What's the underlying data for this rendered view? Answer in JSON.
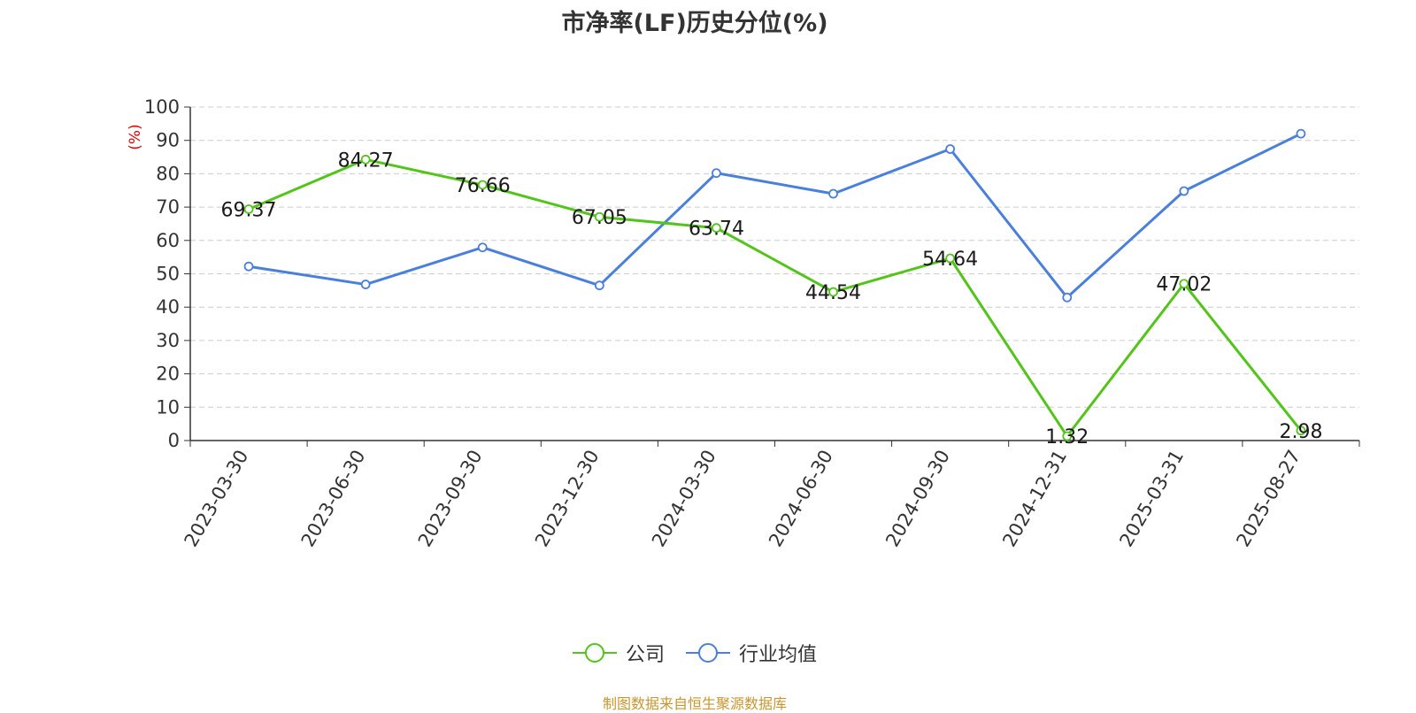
{
  "chart_data": {
    "type": "line",
    "title": "市净率(LF)历史分位(%)",
    "ylabel": "(%)",
    "ylim": [
      0,
      100
    ],
    "yticks": [
      0,
      10,
      20,
      30,
      40,
      50,
      60,
      70,
      80,
      90,
      100
    ],
    "categories": [
      "2023-03-30",
      "2023-06-30",
      "2023-09-30",
      "2023-12-30",
      "2024-03-30",
      "2024-06-30",
      "2024-09-30",
      "2024-12-31",
      "2025-03-31",
      "2025-08-27"
    ],
    "grid": true,
    "legend_position": "bottom",
    "series": [
      {
        "name": "公司",
        "color": "#52c41a",
        "values": [
          69.37,
          84.27,
          76.66,
          67.05,
          63.74,
          44.54,
          54.64,
          1.32,
          47.02,
          2.98
        ],
        "labels": [
          "69.37",
          "84.27",
          "76.66",
          "67.05",
          "63.74",
          "44.54",
          "54.64",
          "1.32",
          "47.02",
          "2.98"
        ]
      },
      {
        "name": "行业均值",
        "color": "#4a7fdc",
        "values": [
          52.2,
          46.8,
          57.9,
          46.5,
          80.2,
          74.0,
          87.4,
          42.9,
          74.8,
          92.0
        ]
      }
    ]
  },
  "footer": "制图数据来自恒生聚源数据库",
  "colors": {
    "ylabel": "#e00000",
    "footer": "#c8962e",
    "grid": "#cccccc",
    "axis": "#333333"
  }
}
